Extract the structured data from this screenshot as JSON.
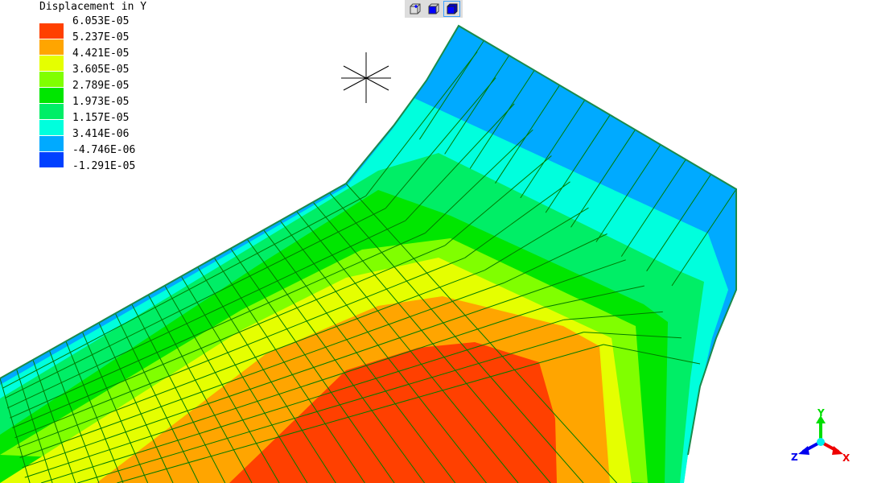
{
  "legend": {
    "title": "Displacement in Y",
    "items": [
      {
        "value": "6.053E-05",
        "color": "#ff4000"
      },
      {
        "value": "5.237E-05",
        "color": "#ffa500"
      },
      {
        "value": "4.421E-05",
        "color": "#e5ff00"
      },
      {
        "value": "3.605E-05",
        "color": "#80ff00"
      },
      {
        "value": "2.789E-05",
        "color": "#00e600"
      },
      {
        "value": "1.973E-05",
        "color": "#00ee66"
      },
      {
        "value": "1.157E-05",
        "color": "#00ffdd"
      },
      {
        "value": "3.414E-06",
        "color": "#00aaff"
      },
      {
        "value": "-4.746E-06",
        "color": "#0040ff"
      },
      {
        "value": "-1.291E-05",
        "color": ""
      }
    ]
  },
  "toolbar": {
    "buttons": [
      {
        "icon": "wireframe-cube-icon",
        "active": false
      },
      {
        "icon": "shaded-cube-icon",
        "active": false
      },
      {
        "icon": "solid-cube-icon",
        "active": true
      }
    ]
  },
  "triad": {
    "x": "X",
    "y": "Y",
    "z": "Z"
  },
  "mesh_line_color": "#007a00"
}
